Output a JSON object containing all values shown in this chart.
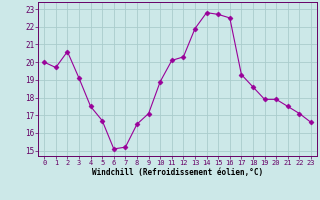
{
  "x": [
    0,
    1,
    2,
    3,
    4,
    5,
    6,
    7,
    8,
    9,
    10,
    11,
    12,
    13,
    14,
    15,
    16,
    17,
    18,
    19,
    20,
    21,
    22,
    23
  ],
  "y": [
    20.0,
    19.7,
    20.6,
    19.1,
    17.5,
    16.7,
    15.1,
    15.2,
    16.5,
    17.1,
    18.9,
    20.1,
    20.3,
    21.9,
    22.8,
    22.7,
    22.5,
    19.3,
    18.6,
    17.9,
    17.9,
    17.5,
    17.1,
    16.6
  ],
  "line_color": "#990099",
  "marker": "D",
  "marker_size": 2.5,
  "bg_color": "#cce8e8",
  "grid_color": "#aacccc",
  "xlabel": "Windchill (Refroidissement éolien,°C)",
  "ylabel_ticks": [
    15,
    16,
    17,
    18,
    19,
    20,
    21,
    22,
    23
  ],
  "xtick_labels": [
    "0",
    "1",
    "2",
    "3",
    "4",
    "5",
    "6",
    "7",
    "8",
    "9",
    "10",
    "11",
    "12",
    "13",
    "14",
    "15",
    "16",
    "17",
    "18",
    "19",
    "20",
    "21",
    "22",
    "23"
  ],
  "xticks": [
    0,
    1,
    2,
    3,
    4,
    5,
    6,
    7,
    8,
    9,
    10,
    11,
    12,
    13,
    14,
    15,
    16,
    17,
    18,
    19,
    20,
    21,
    22,
    23
  ],
  "ylim": [
    14.7,
    23.4
  ],
  "xlim": [
    -0.5,
    23.5
  ]
}
